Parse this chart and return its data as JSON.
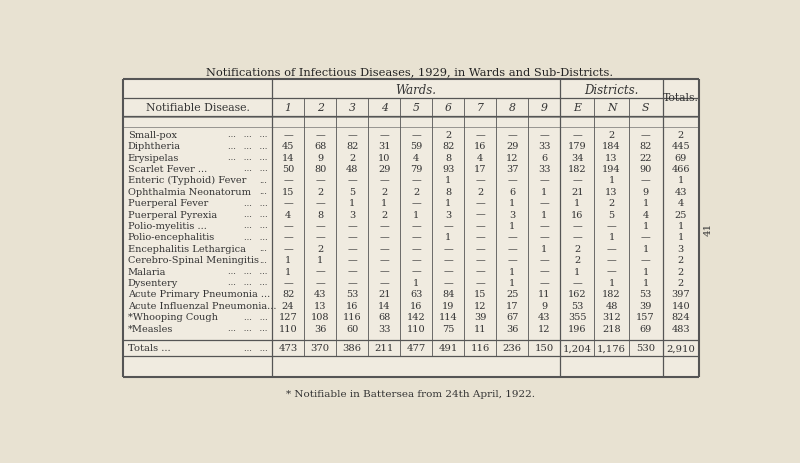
{
  "title": "Notifications of Infectious Diseases, 1929, in Wards and Sub-Districts.",
  "footnote": "* Notifiable in Battersea from 24th April, 1922.",
  "page_number": "41",
  "col_headers_wards": [
    "1",
    "2",
    "3",
    "4",
    "5",
    "6",
    "7",
    "8",
    "9"
  ],
  "col_headers_districts": [
    "E",
    "N",
    "S"
  ],
  "col_header_totals": "Totals.",
  "group_header_wards": "Wards.",
  "group_header_districts": "Districts.",
  "row_label_header": "Notifiable Disease.",
  "rows": [
    {
      "disease": "Small-pox",
      "suffix": "...   ...   ...",
      "vals": [
        "—",
        "—",
        "—",
        "—",
        "—",
        "2",
        "—",
        "—",
        "—",
        "—",
        "2",
        "—",
        "2"
      ]
    },
    {
      "disease": "Diphtheria",
      "suffix": "...   ...   ...",
      "vals": [
        "45",
        "68",
        "82",
        "31",
        "59",
        "82",
        "16",
        "29",
        "33",
        "179",
        "184",
        "82",
        "445"
      ]
    },
    {
      "disease": "Erysipelas",
      "suffix": "...   ...   ...",
      "vals": [
        "14",
        "9",
        "2",
        "10",
        "4",
        "8",
        "4",
        "12",
        "6",
        "34",
        "13",
        "22",
        "69"
      ]
    },
    {
      "disease": "Scarlet Fever ...",
      "suffix": "...   ...",
      "vals": [
        "50",
        "80",
        "48",
        "29",
        "79",
        "93",
        "17",
        "37",
        "33",
        "182",
        "194",
        "90",
        "466"
      ]
    },
    {
      "disease": "Enteric (Typhoid) Fever",
      "suffix": "...",
      "vals": [
        "—",
        "—",
        "—",
        "—",
        "—",
        "1",
        "—",
        "—",
        "—",
        "—",
        "1",
        "—",
        "1"
      ]
    },
    {
      "disease": "Ophthalmia Neonatorum",
      "suffix": "...",
      "vals": [
        "15",
        "2",
        "5",
        "2",
        "2",
        "8",
        "2",
        "6",
        "1",
        "21",
        "13",
        "9",
        "43"
      ]
    },
    {
      "disease": "Puerperal Fever",
      "suffix": "...   ...",
      "vals": [
        "—",
        "—",
        "1",
        "1",
        "—",
        "1",
        "—",
        "1",
        "—",
        "1",
        "2",
        "1",
        "4"
      ]
    },
    {
      "disease": "Puerperal Pyrexia",
      "suffix": "...   ...",
      "vals": [
        "4",
        "8",
        "3",
        "2",
        "1",
        "3",
        "—",
        "3",
        "1",
        "16",
        "5",
        "4",
        "25"
      ]
    },
    {
      "disease": "Polio-myelitis ...",
      "suffix": "...   ...",
      "vals": [
        "—",
        "—",
        "—",
        "—",
        "—",
        "—",
        "—",
        "1",
        "—",
        "—",
        "—",
        "1",
        "1"
      ]
    },
    {
      "disease": "Polio-encephalitis",
      "suffix": "...   ...",
      "vals": [
        "—",
        "—",
        "—",
        "—",
        "—",
        "1",
        "—",
        "—",
        "—",
        "—",
        "1",
        "—",
        "1"
      ]
    },
    {
      "disease": "Encephalitis Lethargica",
      "suffix": "...",
      "vals": [
        "—",
        "2",
        "—",
        "—",
        "—",
        "—",
        "—",
        "—",
        "1",
        "2",
        "—",
        "1",
        "3"
      ]
    },
    {
      "disease": "Cerebro-Spinal Meningitis",
      "suffix": "...",
      "vals": [
        "1",
        "1",
        "—",
        "—",
        "—",
        "—",
        "—",
        "—",
        "—",
        "2",
        "—",
        "—",
        "2"
      ]
    },
    {
      "disease": "Malaria",
      "suffix": "...   ...   ...",
      "vals": [
        "1",
        "—",
        "—",
        "—",
        "—",
        "—",
        "—",
        "1",
        "—",
        "1",
        "—",
        "1",
        "2"
      ]
    },
    {
      "disease": "Dysentery",
      "suffix": "...   ...   ...",
      "vals": [
        "—",
        "—",
        "—",
        "—",
        "1",
        "—",
        "—",
        "1",
        "—",
        "—",
        "1",
        "1",
        "2"
      ]
    },
    {
      "disease": "Acute Primary Pneumonia ...",
      "suffix": "",
      "vals": [
        "82",
        "43",
        "53",
        "21",
        "63",
        "84",
        "15",
        "25",
        "11",
        "162",
        "182",
        "53",
        "397"
      ]
    },
    {
      "disease": "Acute Influenzal Pneumonia...",
      "suffix": "",
      "vals": [
        "24",
        "13",
        "16",
        "14",
        "16",
        "19",
        "12",
        "17",
        "9",
        "53",
        "48",
        "39",
        "140"
      ]
    },
    {
      "disease": "*Whooping Cough",
      "suffix": "...   ...",
      "vals": [
        "127",
        "108",
        "116",
        "68",
        "142",
        "114",
        "39",
        "67",
        "43",
        "355",
        "312",
        "157",
        "824"
      ]
    },
    {
      "disease": "*Measles",
      "suffix": "...   ...   ...",
      "vals": [
        "110",
        "36",
        "60",
        "33",
        "110",
        "75",
        "11",
        "36",
        "12",
        "196",
        "218",
        "69",
        "483"
      ]
    }
  ],
  "totals_row": {
    "label": "Totals ...",
    "suffix": "...   ...",
    "vals": [
      "473",
      "370",
      "386",
      "211",
      "477",
      "491",
      "116",
      "236",
      "150",
      "1,204",
      "1,176",
      "530",
      "2,910"
    ]
  },
  "bg_color": "#e8e2d2",
  "table_bg": "#f0ebe0",
  "line_color": "#555555",
  "text_color": "#333333",
  "title_color": "#222222"
}
